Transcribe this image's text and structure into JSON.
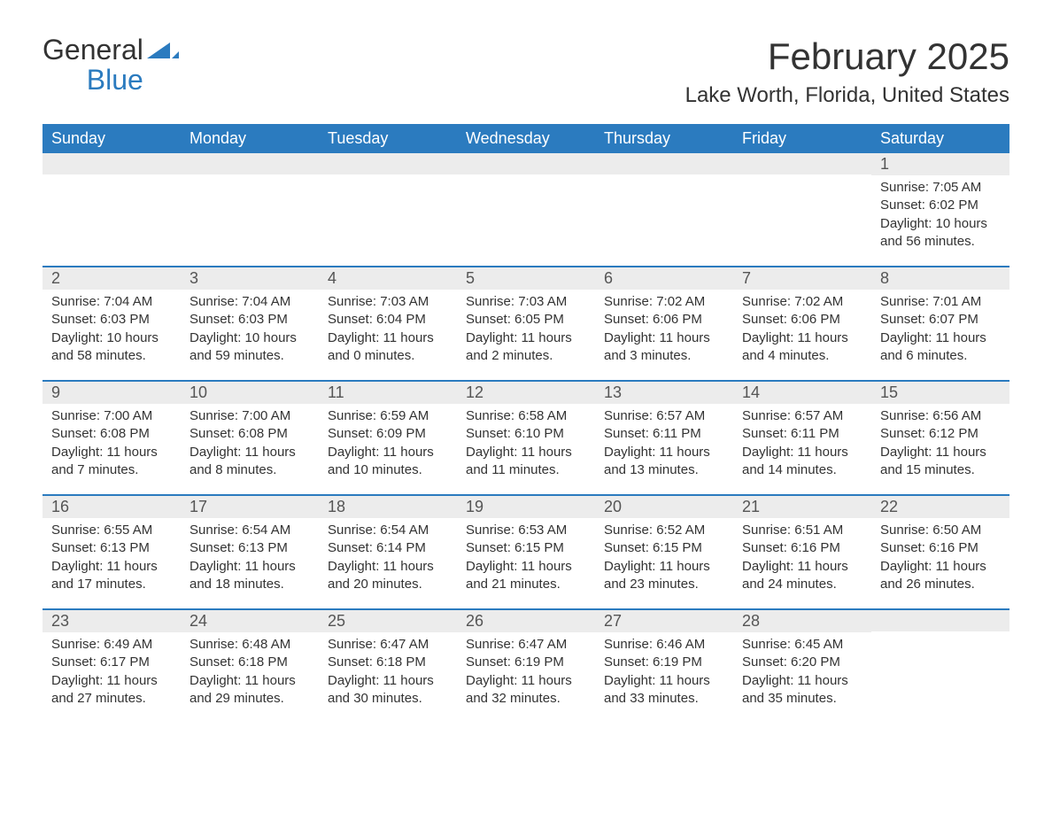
{
  "brand": {
    "general": "General",
    "blue": "Blue",
    "accent_color": "#2b7bbf"
  },
  "title": "February 2025",
  "location": "Lake Worth, Florida, United States",
  "day_headers": [
    "Sunday",
    "Monday",
    "Tuesday",
    "Wednesday",
    "Thursday",
    "Friday",
    "Saturday"
  ],
  "colors": {
    "header_bg": "#2b7bbf",
    "header_text": "#ffffff",
    "daynum_bg": "#ececec",
    "text": "#333333",
    "muted": "#555555",
    "page_bg": "#ffffff"
  },
  "typography": {
    "title_fontsize": 42,
    "location_fontsize": 24,
    "header_fontsize": 18,
    "daynum_fontsize": 18,
    "body_fontsize": 15,
    "logo_fontsize": 32
  },
  "weeks": [
    [
      null,
      null,
      null,
      null,
      null,
      null,
      {
        "n": "1",
        "sunrise": "Sunrise: 7:05 AM",
        "sunset": "Sunset: 6:02 PM",
        "daylight": "Daylight: 10 hours and 56 minutes."
      }
    ],
    [
      {
        "n": "2",
        "sunrise": "Sunrise: 7:04 AM",
        "sunset": "Sunset: 6:03 PM",
        "daylight": "Daylight: 10 hours and 58 minutes."
      },
      {
        "n": "3",
        "sunrise": "Sunrise: 7:04 AM",
        "sunset": "Sunset: 6:03 PM",
        "daylight": "Daylight: 10 hours and 59 minutes."
      },
      {
        "n": "4",
        "sunrise": "Sunrise: 7:03 AM",
        "sunset": "Sunset: 6:04 PM",
        "daylight": "Daylight: 11 hours and 0 minutes."
      },
      {
        "n": "5",
        "sunrise": "Sunrise: 7:03 AM",
        "sunset": "Sunset: 6:05 PM",
        "daylight": "Daylight: 11 hours and 2 minutes."
      },
      {
        "n": "6",
        "sunrise": "Sunrise: 7:02 AM",
        "sunset": "Sunset: 6:06 PM",
        "daylight": "Daylight: 11 hours and 3 minutes."
      },
      {
        "n": "7",
        "sunrise": "Sunrise: 7:02 AM",
        "sunset": "Sunset: 6:06 PM",
        "daylight": "Daylight: 11 hours and 4 minutes."
      },
      {
        "n": "8",
        "sunrise": "Sunrise: 7:01 AM",
        "sunset": "Sunset: 6:07 PM",
        "daylight": "Daylight: 11 hours and 6 minutes."
      }
    ],
    [
      {
        "n": "9",
        "sunrise": "Sunrise: 7:00 AM",
        "sunset": "Sunset: 6:08 PM",
        "daylight": "Daylight: 11 hours and 7 minutes."
      },
      {
        "n": "10",
        "sunrise": "Sunrise: 7:00 AM",
        "sunset": "Sunset: 6:08 PM",
        "daylight": "Daylight: 11 hours and 8 minutes."
      },
      {
        "n": "11",
        "sunrise": "Sunrise: 6:59 AM",
        "sunset": "Sunset: 6:09 PM",
        "daylight": "Daylight: 11 hours and 10 minutes."
      },
      {
        "n": "12",
        "sunrise": "Sunrise: 6:58 AM",
        "sunset": "Sunset: 6:10 PM",
        "daylight": "Daylight: 11 hours and 11 minutes."
      },
      {
        "n": "13",
        "sunrise": "Sunrise: 6:57 AM",
        "sunset": "Sunset: 6:11 PM",
        "daylight": "Daylight: 11 hours and 13 minutes."
      },
      {
        "n": "14",
        "sunrise": "Sunrise: 6:57 AM",
        "sunset": "Sunset: 6:11 PM",
        "daylight": "Daylight: 11 hours and 14 minutes."
      },
      {
        "n": "15",
        "sunrise": "Sunrise: 6:56 AM",
        "sunset": "Sunset: 6:12 PM",
        "daylight": "Daylight: 11 hours and 15 minutes."
      }
    ],
    [
      {
        "n": "16",
        "sunrise": "Sunrise: 6:55 AM",
        "sunset": "Sunset: 6:13 PM",
        "daylight": "Daylight: 11 hours and 17 minutes."
      },
      {
        "n": "17",
        "sunrise": "Sunrise: 6:54 AM",
        "sunset": "Sunset: 6:13 PM",
        "daylight": "Daylight: 11 hours and 18 minutes."
      },
      {
        "n": "18",
        "sunrise": "Sunrise: 6:54 AM",
        "sunset": "Sunset: 6:14 PM",
        "daylight": "Daylight: 11 hours and 20 minutes."
      },
      {
        "n": "19",
        "sunrise": "Sunrise: 6:53 AM",
        "sunset": "Sunset: 6:15 PM",
        "daylight": "Daylight: 11 hours and 21 minutes."
      },
      {
        "n": "20",
        "sunrise": "Sunrise: 6:52 AM",
        "sunset": "Sunset: 6:15 PM",
        "daylight": "Daylight: 11 hours and 23 minutes."
      },
      {
        "n": "21",
        "sunrise": "Sunrise: 6:51 AM",
        "sunset": "Sunset: 6:16 PM",
        "daylight": "Daylight: 11 hours and 24 minutes."
      },
      {
        "n": "22",
        "sunrise": "Sunrise: 6:50 AM",
        "sunset": "Sunset: 6:16 PM",
        "daylight": "Daylight: 11 hours and 26 minutes."
      }
    ],
    [
      {
        "n": "23",
        "sunrise": "Sunrise: 6:49 AM",
        "sunset": "Sunset: 6:17 PM",
        "daylight": "Daylight: 11 hours and 27 minutes."
      },
      {
        "n": "24",
        "sunrise": "Sunrise: 6:48 AM",
        "sunset": "Sunset: 6:18 PM",
        "daylight": "Daylight: 11 hours and 29 minutes."
      },
      {
        "n": "25",
        "sunrise": "Sunrise: 6:47 AM",
        "sunset": "Sunset: 6:18 PM",
        "daylight": "Daylight: 11 hours and 30 minutes."
      },
      {
        "n": "26",
        "sunrise": "Sunrise: 6:47 AM",
        "sunset": "Sunset: 6:19 PM",
        "daylight": "Daylight: 11 hours and 32 minutes."
      },
      {
        "n": "27",
        "sunrise": "Sunrise: 6:46 AM",
        "sunset": "Sunset: 6:19 PM",
        "daylight": "Daylight: 11 hours and 33 minutes."
      },
      {
        "n": "28",
        "sunrise": "Sunrise: 6:45 AM",
        "sunset": "Sunset: 6:20 PM",
        "daylight": "Daylight: 11 hours and 35 minutes."
      },
      null
    ]
  ]
}
